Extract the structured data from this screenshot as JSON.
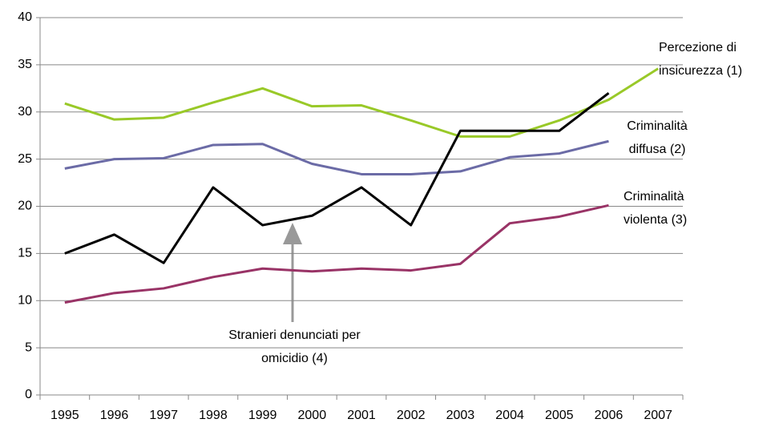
{
  "chart_data": {
    "type": "line",
    "categories": [
      "1995",
      "1996",
      "1997",
      "1998",
      "1999",
      "2000",
      "2001",
      "2002",
      "2003",
      "2004",
      "2005",
      "2006",
      "2007"
    ],
    "series": [
      {
        "name": "Percezione di insicurezza (1)",
        "color": "#99c928",
        "values": [
          30.9,
          29.2,
          29.4,
          31.0,
          32.5,
          30.6,
          30.7,
          29.1,
          27.4,
          27.4,
          29.1,
          31.3,
          34.6
        ]
      },
      {
        "name": "Criminalità diffusa (2)",
        "color": "#6b6ba6",
        "values": [
          24.0,
          25.0,
          25.1,
          26.5,
          26.6,
          24.5,
          23.4,
          23.4,
          23.7,
          25.2,
          25.6,
          26.9,
          null
        ]
      },
      {
        "name": "Criminalità violenta (3)",
        "color": "#993366",
        "values": [
          9.8,
          10.8,
          11.3,
          12.5,
          13.4,
          13.1,
          13.4,
          13.2,
          13.9,
          18.2,
          18.9,
          20.1,
          null
        ]
      },
      {
        "name": "Stranieri denunciati per omicidio (4)",
        "color": "#000000",
        "values": [
          15,
          17,
          14,
          22,
          18,
          19,
          22,
          18,
          28,
          28,
          28,
          32,
          null
        ]
      }
    ],
    "ylim": [
      0,
      40
    ],
    "yticks": [
      0,
      5,
      10,
      15,
      20,
      25,
      30,
      35,
      40
    ],
    "grid": true
  }
}
